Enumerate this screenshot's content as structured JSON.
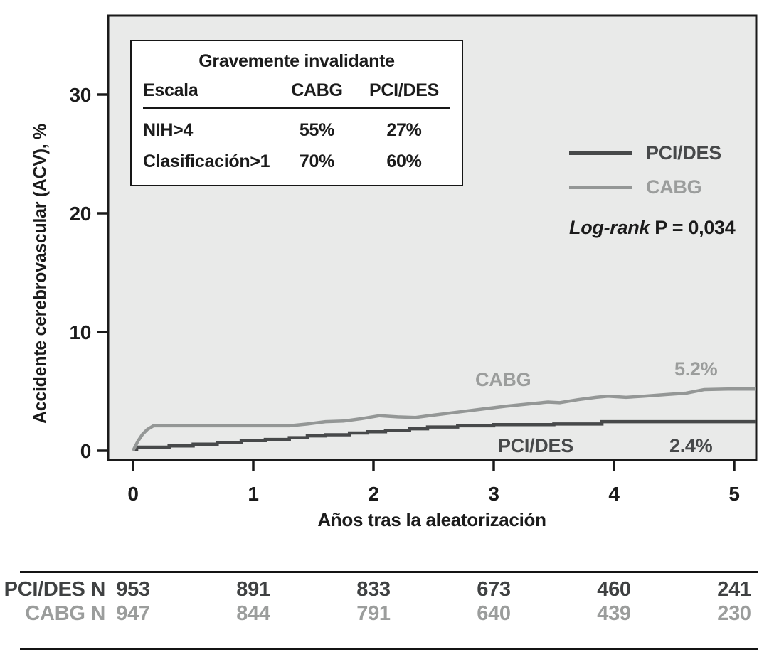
{
  "chart_data": {
    "type": "line",
    "title": "",
    "xlabel": "Años tras la aleatorización",
    "ylabel": "Accidente cerebrovascular (ACV), %",
    "xlim": [
      0,
      5.18
    ],
    "ylim": [
      0,
      36
    ],
    "xticks": [
      "0",
      "1",
      "2",
      "3",
      "4",
      "5"
    ],
    "yticks": [
      "0",
      "10",
      "20",
      "30"
    ],
    "grid": false,
    "legend_position": "right-middle",
    "plot_background": "#e9eae9",
    "frame_color": "#1a1a1a",
    "series": [
      {
        "name": "PCI/DES",
        "color": "#47494a",
        "interpolation": "step-after",
        "end_label": "2.4%",
        "points": [
          [
            0,
            0.1
          ],
          [
            0.03,
            0.3
          ],
          [
            0.3,
            0.4
          ],
          [
            0.5,
            0.55
          ],
          [
            0.7,
            0.7
          ],
          [
            0.9,
            0.85
          ],
          [
            1.1,
            0.95
          ],
          [
            1.3,
            1.1
          ],
          [
            1.45,
            1.25
          ],
          [
            1.6,
            1.35
          ],
          [
            1.8,
            1.5
          ],
          [
            1.95,
            1.6
          ],
          [
            2.1,
            1.7
          ],
          [
            2.3,
            1.85
          ],
          [
            2.45,
            2.0
          ],
          [
            2.7,
            2.1
          ],
          [
            3.0,
            2.2
          ],
          [
            3.5,
            2.25
          ],
          [
            3.9,
            2.45
          ],
          [
            5.18,
            2.45
          ]
        ]
      },
      {
        "name": "CABG",
        "color": "#949796",
        "interpolation": "linear",
        "end_label": "5.2%",
        "points": [
          [
            0,
            0
          ],
          [
            0.04,
            0.8
          ],
          [
            0.08,
            1.4
          ],
          [
            0.12,
            1.8
          ],
          [
            0.17,
            2.1
          ],
          [
            1.3,
            2.1
          ],
          [
            1.45,
            2.25
          ],
          [
            1.6,
            2.45
          ],
          [
            1.75,
            2.5
          ],
          [
            1.9,
            2.7
          ],
          [
            2.05,
            2.95
          ],
          [
            2.2,
            2.85
          ],
          [
            2.35,
            2.8
          ],
          [
            2.5,
            3.0
          ],
          [
            2.7,
            3.25
          ],
          [
            2.9,
            3.5
          ],
          [
            3.1,
            3.75
          ],
          [
            3.3,
            3.95
          ],
          [
            3.45,
            4.1
          ],
          [
            3.55,
            4.05
          ],
          [
            3.7,
            4.3
          ],
          [
            3.85,
            4.5
          ],
          [
            3.95,
            4.6
          ],
          [
            4.1,
            4.5
          ],
          [
            4.25,
            4.6
          ],
          [
            4.45,
            4.75
          ],
          [
            4.6,
            4.85
          ],
          [
            4.75,
            5.15
          ],
          [
            4.95,
            5.2
          ],
          [
            5.18,
            5.2
          ]
        ]
      }
    ],
    "annotation": {
      "logrank_italic": "Log-rank",
      "logrank_rest": " P = 0,034"
    },
    "inset_table": {
      "title": "Gravemente invalidante",
      "columns": [
        "Escala",
        "CABG",
        "PCI/DES"
      ],
      "rows": [
        [
          "NIH>4",
          "55%",
          "27%"
        ],
        [
          "Clasificación>1",
          "70%",
          "60%"
        ]
      ]
    },
    "risk_table": {
      "rows": [
        {
          "label": "PCI/DES N",
          "color": "#3f4142",
          "values": [
            "953",
            "891",
            "833",
            "673",
            "460",
            "241"
          ]
        },
        {
          "label": "CABG N",
          "color": "#9b9d9c",
          "values": [
            "947",
            "844",
            "791",
            "640",
            "439",
            "230"
          ]
        }
      ]
    }
  }
}
